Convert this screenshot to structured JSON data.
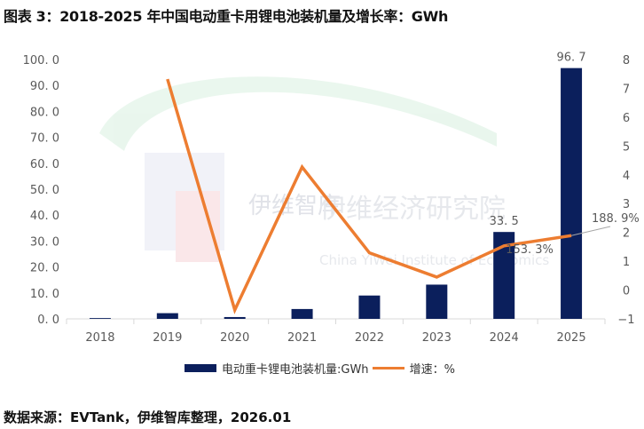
{
  "header": {
    "title": "图表 3：2018-2025 年中国电动重卡用锂电池装机量及增长率：GWh"
  },
  "footer": {
    "source": "数据来源：EVTank，伊维智库整理，2026.01"
  },
  "watermark": {
    "brand": "EVTank",
    "cn_name": "伊维经济研究院",
    "logo_text": "伊维智库",
    "en_name": "China YiWei Institute of Economics"
  },
  "legend": {
    "bar_label": "电动重卡锂电池装机量:GWh",
    "line_label": "增速：%"
  },
  "colors": {
    "bar": "#0b1f5c",
    "line": "#ed7d31",
    "axis": "#d9d9d9",
    "text": "#595959"
  },
  "chart_data": {
    "type": "bar+line",
    "title": "图表 3：2018-2025 年中国电动重卡用锂电池装机量及增长率：GWh",
    "categories": [
      "2018",
      "2019",
      "2020",
      "2021",
      "2022",
      "2023",
      "2024",
      "2025"
    ],
    "series": [
      {
        "name": "电动重卡锂电池装机量:GWh",
        "type": "bar",
        "axis": "left",
        "values": [
          0.3,
          2.2,
          0.7,
          3.8,
          9.0,
          13.2,
          33.5,
          96.7
        ],
        "labels": [
          "",
          "",
          "",
          "",
          "",
          "",
          "33.5",
          "96.7"
        ]
      },
      {
        "name": "增速：%",
        "type": "line",
        "axis": "right",
        "values": [
          null,
          7.32,
          -0.69,
          4.27,
          1.29,
          0.45,
          1.533,
          1.889
        ],
        "labels": [
          "",
          "",
          "",
          "",
          "",
          "",
          "153.3%",
          "188.9%"
        ]
      }
    ],
    "left_axis": {
      "ylim": [
        0,
        100
      ],
      "ticks": [
        "0.0",
        "10.0",
        "20.0",
        "30.0",
        "40.0",
        "50.0",
        "60.0",
        "70.0",
        "80.0",
        "90.0",
        "100.0"
      ]
    },
    "right_axis": {
      "ylim": [
        -1,
        8
      ],
      "ticks": [
        "-1",
        "0",
        "1",
        "2",
        "3",
        "4",
        "5",
        "6",
        "7",
        "8"
      ]
    },
    "xlabel": "",
    "ylabel": "",
    "grid": false,
    "legend_position": "bottom"
  }
}
